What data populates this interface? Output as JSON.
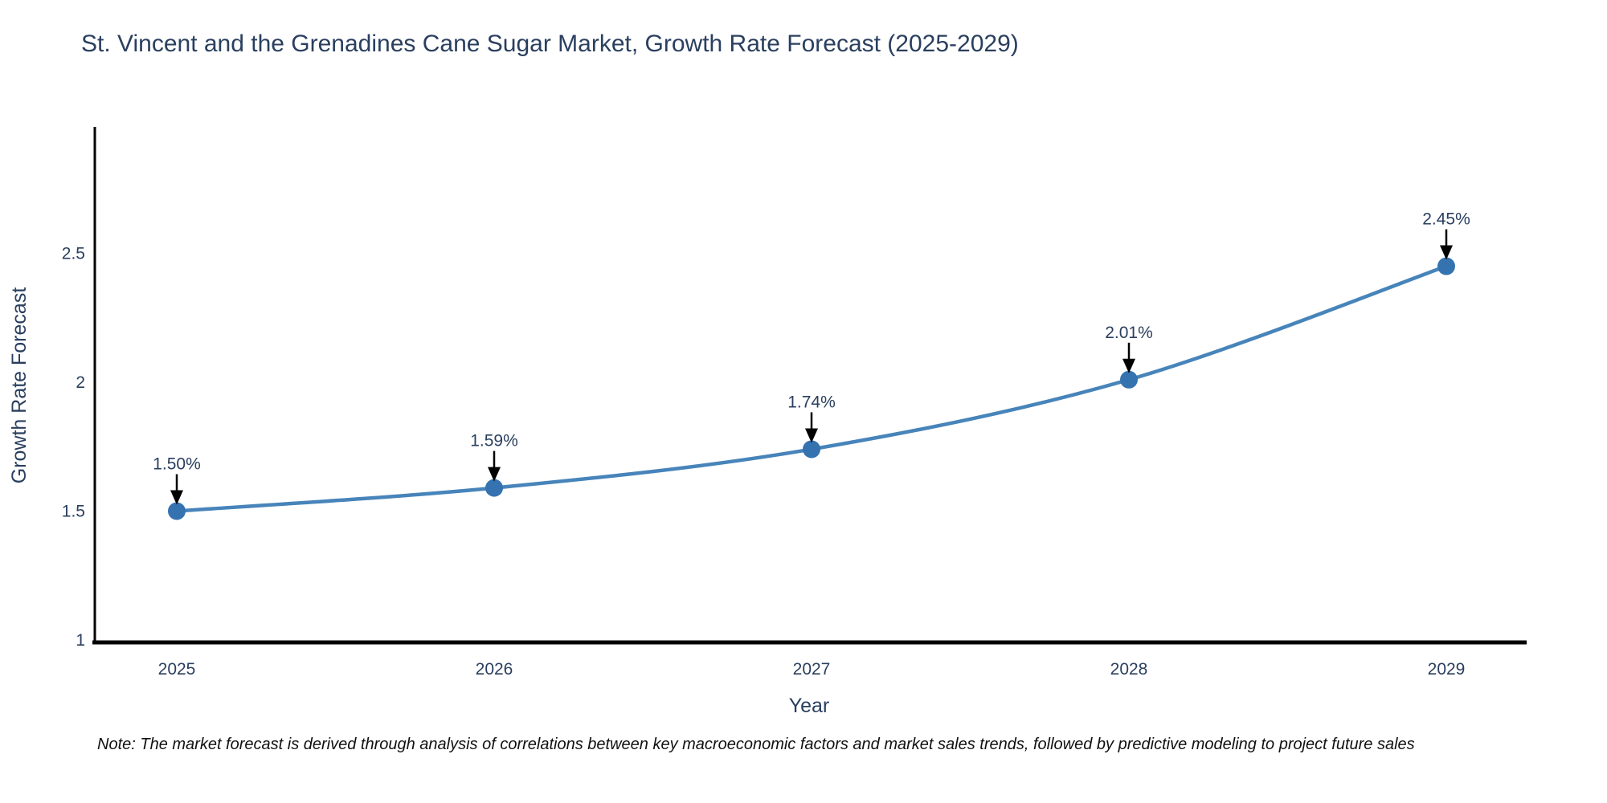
{
  "chart_data": {
    "type": "line",
    "title": "St. Vincent and the Grenadines Cane Sugar Market, Growth Rate Forecast (2025-2029)",
    "xlabel": "Year",
    "ylabel": "Growth Rate Forecast",
    "x": [
      2025,
      2026,
      2027,
      2028,
      2029
    ],
    "series": [
      {
        "name": "Growth Rate Forecast",
        "values": [
          1.5,
          1.59,
          1.74,
          2.01,
          2.45
        ]
      }
    ],
    "point_labels": [
      "1.50%",
      "1.59%",
      "1.74%",
      "2.01%",
      "2.45%"
    ],
    "xticks": [
      "2025",
      "2026",
      "2027",
      "2028",
      "2029"
    ],
    "yticks": [
      1,
      1.5,
      2,
      2.5
    ],
    "ylim": [
      1,
      3
    ],
    "grid": false,
    "legend": "none",
    "line_shape": "spline",
    "line_color": "#4784ba",
    "marker_color": "#3572b0",
    "axis_color": "#000000",
    "text_color": "#2a3f5f",
    "annotation_arrow_color": "#000000"
  },
  "note": "Note: The market forecast is derived through analysis of correlations between key macroeconomic factors and market sales trends, followed by predictive modeling to project future sales"
}
